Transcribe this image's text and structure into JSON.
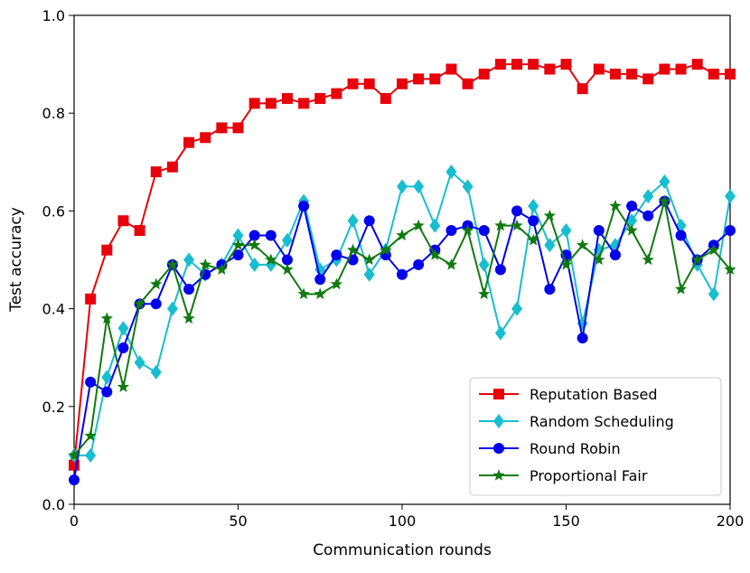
{
  "chart_data": {
    "type": "line",
    "xlabel": "Communication rounds",
    "ylabel": "Test accuracy",
    "xlim": [
      0,
      200
    ],
    "ylim": [
      0.0,
      1.0
    ],
    "xticks": [
      0,
      50,
      100,
      150,
      200
    ],
    "yticks": [
      0.0,
      0.2,
      0.4,
      0.6,
      0.8,
      1.0
    ],
    "xtick_labels": [
      "0",
      "50",
      "100",
      "150",
      "200"
    ],
    "ytick_labels": [
      "0.0",
      "0.2",
      "0.4",
      "0.6",
      "0.8",
      "1.0"
    ],
    "grid": false,
    "legend_position": "bottom-right",
    "x": [
      0,
      5,
      10,
      15,
      20,
      25,
      30,
      35,
      40,
      45,
      50,
      55,
      60,
      65,
      70,
      75,
      80,
      85,
      90,
      95,
      100,
      105,
      110,
      115,
      120,
      125,
      130,
      135,
      140,
      145,
      150,
      155,
      160,
      165,
      170,
      175,
      180,
      185,
      190,
      195,
      200
    ],
    "series": [
      {
        "name": "Reputation Based",
        "color": "#e8000b",
        "marker": "square",
        "values": [
          0.08,
          0.42,
          0.52,
          0.58,
          0.56,
          0.68,
          0.69,
          0.74,
          0.75,
          0.77,
          0.77,
          0.82,
          0.82,
          0.83,
          0.82,
          0.83,
          0.84,
          0.86,
          0.86,
          0.83,
          0.86,
          0.87,
          0.87,
          0.89,
          0.86,
          0.88,
          0.9,
          0.9,
          0.9,
          0.89,
          0.9,
          0.85,
          0.89,
          0.88,
          0.88,
          0.87,
          0.89,
          0.89,
          0.9,
          0.88,
          0.88
        ]
      },
      {
        "name": "Random Scheduling",
        "color": "#17becf",
        "marker": "diamond",
        "values": [
          0.1,
          0.1,
          0.26,
          0.36,
          0.29,
          0.27,
          0.4,
          0.5,
          0.47,
          0.49,
          0.55,
          0.49,
          0.49,
          0.54,
          0.62,
          0.48,
          0.5,
          0.58,
          0.47,
          0.52,
          0.65,
          0.65,
          0.57,
          0.68,
          0.65,
          0.49,
          0.35,
          0.4,
          0.61,
          0.53,
          0.56,
          0.37,
          0.52,
          0.53,
          0.58,
          0.63,
          0.66,
          0.57,
          0.49,
          0.43,
          0.63
        ]
      },
      {
        "name": "Round Robin",
        "color": "#0000ee",
        "marker": "circle",
        "values": [
          0.05,
          0.25,
          0.23,
          0.32,
          0.41,
          0.41,
          0.49,
          0.44,
          0.47,
          0.49,
          0.51,
          0.55,
          0.55,
          0.5,
          0.61,
          0.46,
          0.51,
          0.5,
          0.58,
          0.51,
          0.47,
          0.49,
          0.52,
          0.56,
          0.57,
          0.56,
          0.48,
          0.6,
          0.58,
          0.44,
          0.51,
          0.34,
          0.56,
          0.51,
          0.61,
          0.59,
          0.62,
          0.55,
          0.5,
          0.53,
          0.56
        ]
      },
      {
        "name": "Proportional Fair",
        "color": "#107a10",
        "marker": "star",
        "values": [
          0.1,
          0.14,
          0.38,
          0.24,
          0.41,
          0.45,
          0.49,
          0.38,
          0.49,
          0.48,
          0.53,
          0.53,
          0.5,
          0.48,
          0.43,
          0.43,
          0.45,
          0.52,
          0.5,
          0.52,
          0.55,
          0.57,
          0.51,
          0.49,
          0.56,
          0.43,
          0.57,
          0.57,
          0.54,
          0.59,
          0.49,
          0.53,
          0.5,
          0.61,
          0.56,
          0.5,
          0.62,
          0.44,
          0.5,
          0.52,
          0.48
        ]
      }
    ]
  }
}
